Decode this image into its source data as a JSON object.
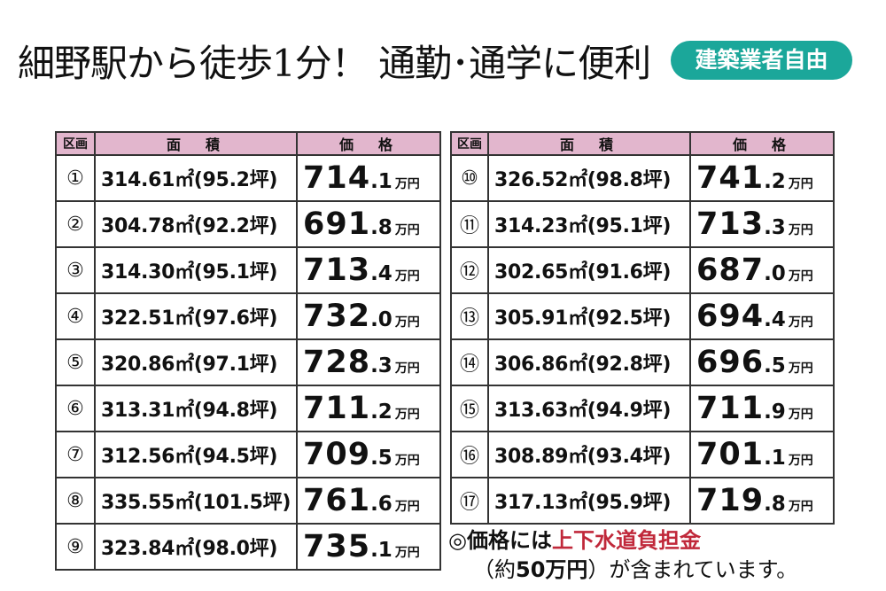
{
  "headline": "細野駅から徒歩1分！ 通勤･通学に便利",
  "badge": "建築業者自由",
  "columns": {
    "kubun": "区画",
    "area": "面　積",
    "price": "価　格"
  },
  "unit": "万円",
  "left_rows": [
    {
      "no": "①",
      "area": "314.61㎡(95.2坪)",
      "price_int": "714",
      "price_dec": ".1"
    },
    {
      "no": "②",
      "area": "304.78㎡(92.2坪)",
      "price_int": "691",
      "price_dec": ".8"
    },
    {
      "no": "③",
      "area": "314.30㎡(95.1坪)",
      "price_int": "713",
      "price_dec": ".4"
    },
    {
      "no": "④",
      "area": "322.51㎡(97.6坪)",
      "price_int": "732",
      "price_dec": ".0"
    },
    {
      "no": "⑤",
      "area": "320.86㎡(97.1坪)",
      "price_int": "728",
      "price_dec": ".3"
    },
    {
      "no": "⑥",
      "area": "313.31㎡(94.8坪)",
      "price_int": "711",
      "price_dec": ".2"
    },
    {
      "no": "⑦",
      "area": "312.56㎡(94.5坪)",
      "price_int": "709",
      "price_dec": ".5"
    },
    {
      "no": "⑧",
      "area": "335.55㎡(101.5坪)",
      "price_int": "761",
      "price_dec": ".6"
    },
    {
      "no": "⑨",
      "area": "323.84㎡(98.0坪)",
      "price_int": "735",
      "price_dec": ".1"
    }
  ],
  "right_rows": [
    {
      "no": "⑩",
      "area": "326.52㎡(98.8坪)",
      "price_int": "741",
      "price_dec": ".2"
    },
    {
      "no": "⑪",
      "area": "314.23㎡(95.1坪)",
      "price_int": "713",
      "price_dec": ".3"
    },
    {
      "no": "⑫",
      "area": "302.65㎡(91.6坪)",
      "price_int": "687",
      "price_dec": ".0"
    },
    {
      "no": "⑬",
      "area": "305.91㎡(92.5坪)",
      "price_int": "694",
      "price_dec": ".4"
    },
    {
      "no": "⑭",
      "area": "306.86㎡(92.8坪)",
      "price_int": "696",
      "price_dec": ".5"
    },
    {
      "no": "⑮",
      "area": "313.63㎡(94.9坪)",
      "price_int": "711",
      "price_dec": ".9"
    },
    {
      "no": "⑯",
      "area": "308.89㎡(93.4坪)",
      "price_int": "701",
      "price_dec": ".1"
    },
    {
      "no": "⑰",
      "area": "317.13㎡(95.9坪)",
      "price_int": "719",
      "price_dec": ".8"
    }
  ],
  "note": {
    "line1_prefix": "◎価格には",
    "line1_highlight": "上下水道負担金",
    "line2_open": "（約",
    "line2_amount": "50万円",
    "line2_close": "）",
    "line2_rest": "が含まれています。"
  },
  "colors": {
    "header_bg": "#e2b6cd",
    "badge_bg": "#1ba79a",
    "highlight": "#c0283a"
  }
}
